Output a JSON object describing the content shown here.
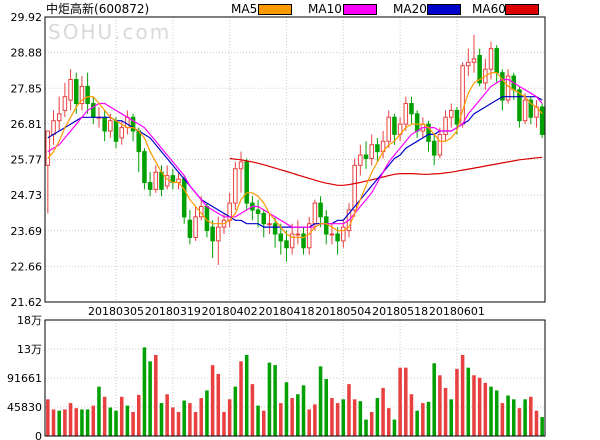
{
  "header": {
    "stock_name": "中炬高新",
    "stock_code": "(600872)",
    "watermark": "SOHU.com",
    "legend": [
      {
        "label": "MA5",
        "color": "#ff9900"
      },
      {
        "label": "MA10",
        "color": "#ff00ff"
      },
      {
        "label": "MA20",
        "color": "#0000cc"
      },
      {
        "label": "MA60",
        "color": "#dd0000"
      }
    ]
  },
  "colors": {
    "up": "#e84040",
    "down": "#00a000",
    "grid": "#cccccc",
    "frame": "#000000"
  },
  "chart_data": [
    {
      "type": "candlestick",
      "title": "中炬高新(600872)",
      "y_ticks": [
        "29.92",
        "28.88",
        "27.85",
        "26.81",
        "25.77",
        "24.73",
        "23.69",
        "22.66",
        "21.62"
      ],
      "ylim": [
        21.62,
        29.92
      ],
      "x_ticks": [
        {
          "index": 12,
          "label": "20180305"
        },
        {
          "index": 22,
          "label": "20180319"
        },
        {
          "index": 32,
          "label": "20180402"
        },
        {
          "index": 42,
          "label": "20180418"
        },
        {
          "index": 52,
          "label": "20180504"
        },
        {
          "index": 62,
          "label": "20180518"
        },
        {
          "index": 72,
          "label": "20180601"
        }
      ],
      "candles": [
        [
          25.6,
          26.6,
          26.6,
          24.2
        ],
        [
          26.5,
          26.9,
          27.2,
          26.2
        ],
        [
          26.9,
          27.1,
          27.6,
          26.6
        ],
        [
          27.2,
          27.6,
          28.0,
          27.0
        ],
        [
          27.5,
          28.1,
          28.4,
          27.2
        ],
        [
          28.1,
          27.4,
          28.3,
          27.1
        ],
        [
          27.4,
          27.9,
          28.2,
          27.2
        ],
        [
          27.9,
          27.4,
          28.3,
          27.1
        ],
        [
          27.4,
          27.0,
          27.6,
          26.8
        ],
        [
          27.0,
          27.0,
          27.3,
          26.7
        ],
        [
          27.0,
          26.6,
          27.2,
          26.3
        ],
        [
          26.6,
          26.9,
          27.1,
          26.4
        ],
        [
          26.9,
          26.3,
          27.0,
          26.1
        ],
        [
          26.4,
          26.7,
          26.9,
          26.2
        ],
        [
          26.7,
          27.0,
          27.2,
          26.5
        ],
        [
          27.0,
          26.6,
          27.1,
          26.3
        ],
        [
          26.6,
          26.0,
          26.7,
          25.4
        ],
        [
          26.0,
          25.1,
          26.1,
          24.9
        ],
        [
          25.1,
          24.9,
          25.4,
          24.7
        ],
        [
          24.9,
          25.4,
          25.6,
          24.8
        ],
        [
          25.4,
          24.9,
          25.6,
          24.7
        ],
        [
          25.0,
          25.3,
          25.6,
          24.9
        ],
        [
          25.3,
          25.1,
          25.5,
          24.9
        ],
        [
          25.1,
          25.2,
          25.4,
          24.9
        ],
        [
          25.2,
          24.1,
          25.3,
          23.9
        ],
        [
          24.0,
          23.5,
          24.3,
          23.3
        ],
        [
          23.5,
          24.1,
          24.4,
          23.4
        ],
        [
          24.1,
          24.4,
          24.7,
          24.0
        ],
        [
          24.4,
          23.7,
          24.5,
          23.5
        ],
        [
          23.8,
          23.4,
          24.0,
          22.9
        ],
        [
          23.4,
          23.8,
          24.1,
          22.7
        ],
        [
          23.8,
          24.0,
          24.2,
          23.6
        ],
        [
          24.0,
          24.5,
          24.8,
          23.8
        ],
        [
          24.5,
          25.5,
          25.7,
          24.3
        ],
        [
          25.5,
          25.7,
          26.0,
          24.8
        ],
        [
          25.7,
          24.5,
          25.8,
          24.3
        ],
        [
          24.5,
          24.3,
          24.7,
          24.0
        ],
        [
          24.3,
          24.2,
          24.6,
          23.8
        ],
        [
          24.2,
          23.9,
          24.3,
          23.5
        ],
        [
          23.9,
          23.9,
          24.2,
          23.6
        ],
        [
          23.9,
          23.6,
          24.1,
          23.2
        ],
        [
          23.6,
          23.4,
          23.9,
          23.0
        ],
        [
          23.4,
          23.2,
          23.7,
          22.8
        ],
        [
          23.2,
          23.6,
          23.9,
          23.0
        ],
        [
          23.6,
          23.6,
          24.0,
          23.3
        ],
        [
          23.6,
          23.2,
          23.8,
          23.0
        ],
        [
          23.2,
          23.9,
          24.1,
          23.0
        ],
        [
          23.9,
          24.5,
          24.6,
          23.7
        ],
        [
          24.5,
          24.1,
          24.7,
          23.8
        ],
        [
          24.1,
          23.6,
          24.3,
          23.3
        ],
        [
          23.6,
          23.6,
          23.9,
          23.3
        ],
        [
          23.6,
          23.4,
          23.8,
          23.0
        ],
        [
          23.4,
          23.8,
          24.0,
          23.2
        ],
        [
          23.7,
          24.3,
          24.5,
          23.5
        ],
        [
          24.3,
          25.6,
          25.8,
          24.1
        ],
        [
          25.6,
          25.9,
          26.2,
          25.3
        ],
        [
          25.9,
          25.8,
          26.3,
          25.5
        ],
        [
          25.8,
          26.2,
          26.5,
          25.6
        ],
        [
          26.2,
          26.0,
          26.4,
          25.7
        ],
        [
          26.0,
          26.3,
          26.6,
          25.8
        ],
        [
          26.3,
          27.0,
          27.2,
          26.1
        ],
        [
          27.0,
          26.5,
          27.1,
          26.2
        ],
        [
          26.5,
          26.8,
          27.0,
          26.3
        ],
        [
          26.8,
          27.4,
          27.6,
          26.6
        ],
        [
          27.4,
          27.1,
          27.6,
          26.8
        ],
        [
          27.1,
          26.6,
          27.2,
          26.4
        ],
        [
          26.6,
          26.8,
          27.0,
          26.4
        ],
        [
          26.8,
          26.3,
          26.9,
          26.0
        ],
        [
          26.3,
          25.9,
          26.5,
          25.6
        ],
        [
          25.9,
          26.5,
          26.7,
          25.8
        ],
        [
          26.5,
          27.0,
          27.2,
          26.3
        ],
        [
          27.0,
          27.2,
          27.4,
          26.7
        ],
        [
          27.2,
          26.8,
          27.3,
          26.5
        ],
        [
          26.8,
          28.5,
          28.6,
          26.7
        ],
        [
          28.5,
          28.6,
          29.0,
          28.2
        ],
        [
          28.6,
          28.7,
          29.4,
          28.3
        ],
        [
          28.8,
          28.0,
          29.0,
          27.9
        ],
        [
          28.0,
          28.4,
          28.7,
          27.8
        ],
        [
          28.4,
          29.0,
          29.2,
          28.1
        ],
        [
          29.0,
          28.3,
          29.1,
          28.0
        ],
        [
          28.3,
          27.5,
          28.4,
          27.2
        ],
        [
          27.5,
          28.2,
          28.4,
          27.4
        ],
        [
          28.2,
          27.8,
          28.3,
          27.5
        ],
        [
          27.8,
          26.9,
          27.9,
          26.7
        ],
        [
          26.9,
          27.5,
          27.7,
          26.8
        ],
        [
          27.5,
          27.0,
          27.6,
          26.8
        ],
        [
          27.0,
          27.3,
          27.5,
          26.7
        ],
        [
          27.3,
          26.5,
          27.4,
          26.4
        ]
      ],
      "ma5": [
        25.8,
        26.0,
        26.3,
        26.7,
        27.0,
        27.3,
        27.5,
        27.6,
        27.6,
        27.4,
        27.2,
        27.0,
        26.9,
        26.8,
        26.7,
        26.7,
        26.6,
        26.4,
        26.0,
        25.7,
        25.4,
        25.2,
        25.1,
        25.1,
        24.9,
        24.6,
        24.4,
        24.2,
        24.0,
        23.9,
        23.9,
        23.9,
        24.0,
        24.2,
        24.6,
        24.8,
        24.8,
        24.7,
        24.5,
        24.2,
        24.0,
        23.8,
        23.6,
        23.5,
        23.5,
        23.5,
        23.6,
        23.8,
        23.9,
        23.9,
        23.8,
        23.7,
        23.7,
        23.8,
        24.2,
        24.6,
        25.0,
        25.4,
        25.7,
        26.0,
        26.2,
        26.3,
        26.5,
        26.7,
        26.8,
        26.8,
        26.8,
        26.7,
        26.5,
        26.3,
        26.3,
        26.4,
        26.6,
        27.2,
        27.7,
        28.0,
        28.1,
        28.2,
        28.3,
        28.3,
        28.1,
        27.9,
        27.8,
        27.7,
        27.6,
        27.4,
        27.3,
        27.1
      ],
      "ma10": [
        26.0,
        26.1,
        26.2,
        26.4,
        26.6,
        26.8,
        27.0,
        27.2,
        27.3,
        27.4,
        27.4,
        27.3,
        27.2,
        27.1,
        27.0,
        26.9,
        26.8,
        26.7,
        26.5,
        26.3,
        26.1,
        25.9,
        25.7,
        25.5,
        25.3,
        25.0,
        24.8,
        24.6,
        24.4,
        24.3,
        24.2,
        24.1,
        24.1,
        24.1,
        24.2,
        24.3,
        24.4,
        24.4,
        24.3,
        24.2,
        24.1,
        24.0,
        23.9,
        23.8,
        23.8,
        23.8,
        23.8,
        23.8,
        23.9,
        23.9,
        23.9,
        23.9,
        23.9,
        24.0,
        24.2,
        24.4,
        24.6,
        24.8,
        25.1,
        25.4,
        25.7,
        25.9,
        26.1,
        26.3,
        26.5,
        26.6,
        26.7,
        26.7,
        26.7,
        26.6,
        26.6,
        26.6,
        26.7,
        26.8,
        27.1,
        27.3,
        27.5,
        27.7,
        27.9,
        28.0,
        28.1,
        28.1,
        28.0,
        27.9,
        27.8,
        27.7,
        27.6,
        27.4
      ],
      "ma20": [
        26.4,
        26.5,
        26.6,
        26.7,
        26.8,
        26.9,
        27.0,
        27.0,
        27.0,
        27.0,
        27.0,
        27.0,
        26.9,
        26.9,
        26.8,
        26.7,
        26.6,
        26.5,
        26.4,
        26.2,
        26.0,
        25.8,
        25.6,
        25.4,
        25.2,
        25.0,
        24.8,
        24.6,
        24.5,
        24.4,
        24.3,
        24.2,
        24.1,
        24.0,
        24.0,
        23.9,
        23.9,
        23.9,
        23.8,
        23.8,
        23.8,
        23.8,
        23.8,
        23.8,
        23.8,
        23.8,
        23.8,
        23.9,
        23.9,
        23.9,
        23.9,
        24.0,
        24.0,
        24.2,
        24.4,
        24.6,
        24.8,
        25.0,
        25.2,
        25.4,
        25.6,
        25.8,
        25.9,
        26.1,
        26.2,
        26.3,
        26.4,
        26.5,
        26.5,
        26.6,
        26.6,
        26.6,
        26.7,
        26.8,
        26.9,
        27.1,
        27.2,
        27.3,
        27.4,
        27.5,
        27.6,
        27.6,
        27.6,
        27.6,
        27.6,
        27.6,
        27.6,
        27.5
      ],
      "ma60": [
        null,
        null,
        null,
        null,
        null,
        null,
        null,
        null,
        null,
        null,
        null,
        null,
        null,
        null,
        null,
        null,
        null,
        null,
        null,
        null,
        null,
        null,
        null,
        null,
        null,
        null,
        null,
        null,
        null,
        null,
        null,
        null,
        25.8,
        25.78,
        25.76,
        25.73,
        25.7,
        25.66,
        25.62,
        25.57,
        25.52,
        25.47,
        25.42,
        25.37,
        25.32,
        25.27,
        25.22,
        25.17,
        25.12,
        25.08,
        25.05,
        25.02,
        25.02,
        25.04,
        25.07,
        25.1,
        25.14,
        25.18,
        25.22,
        25.26,
        25.3,
        25.34,
        25.36,
        25.36,
        25.36,
        25.35,
        25.34,
        25.34,
        25.35,
        25.36,
        25.38,
        25.4,
        25.43,
        25.46,
        25.49,
        25.52,
        25.55,
        25.58,
        25.61,
        25.64,
        25.67,
        25.7,
        25.73,
        25.76,
        25.78,
        25.8,
        25.82,
        25.83
      ]
    },
    {
      "type": "bar",
      "title": "volume",
      "y_ticks": [
        "18万",
        "13万",
        "91661",
        "45830",
        "0"
      ],
      "ylim": [
        0,
        183322
      ],
      "volumes": [
        58000,
        42000,
        40000,
        42000,
        52000,
        44000,
        42000,
        42000,
        48000,
        78000,
        62000,
        45000,
        40000,
        62000,
        48000,
        38000,
        65000,
        140000,
        118000,
        128000,
        52000,
        66000,
        45000,
        38000,
        56000,
        52000,
        38000,
        60000,
        72000,
        112000,
        98000,
        38000,
        58000,
        78000,
        118000,
        128000,
        82000,
        48000,
        40000,
        116000,
        112000,
        52000,
        85000,
        60000,
        66000,
        80000,
        42000,
        50000,
        110000,
        90000,
        60000,
        52000,
        58000,
        82000,
        58000,
        55000,
        26000,
        38000,
        60000,
        76000,
        44000,
        26000,
        108000,
        108000,
        66000,
        40000,
        52000,
        54000,
        115000,
        96000,
        76000,
        58000,
        106000,
        128000,
        108000,
        96000,
        92000,
        84000,
        78000,
        72000,
        52000,
        64000,
        58000,
        44000,
        58000,
        62000,
        40000,
        30000
      ],
      "up_flags": [
        1,
        1,
        0,
        1,
        1,
        1,
        0,
        0,
        1,
        0,
        1,
        0,
        0,
        1,
        0,
        1,
        1,
        0,
        0,
        1,
        0,
        1,
        1,
        1,
        0,
        1,
        1,
        1,
        0,
        1,
        1,
        1,
        1,
        0,
        1,
        0,
        1,
        0,
        1,
        0,
        0,
        1,
        0,
        1,
        0,
        0,
        1,
        1,
        0,
        0,
        1,
        1,
        0,
        1,
        1,
        0,
        0,
        1,
        0,
        1,
        1,
        0,
        1,
        1,
        1,
        0,
        1,
        0,
        0,
        1,
        1,
        0,
        1,
        1,
        0,
        1,
        1,
        1,
        0,
        0,
        1,
        0,
        0,
        1,
        0,
        1,
        1,
        0
      ]
    }
  ]
}
